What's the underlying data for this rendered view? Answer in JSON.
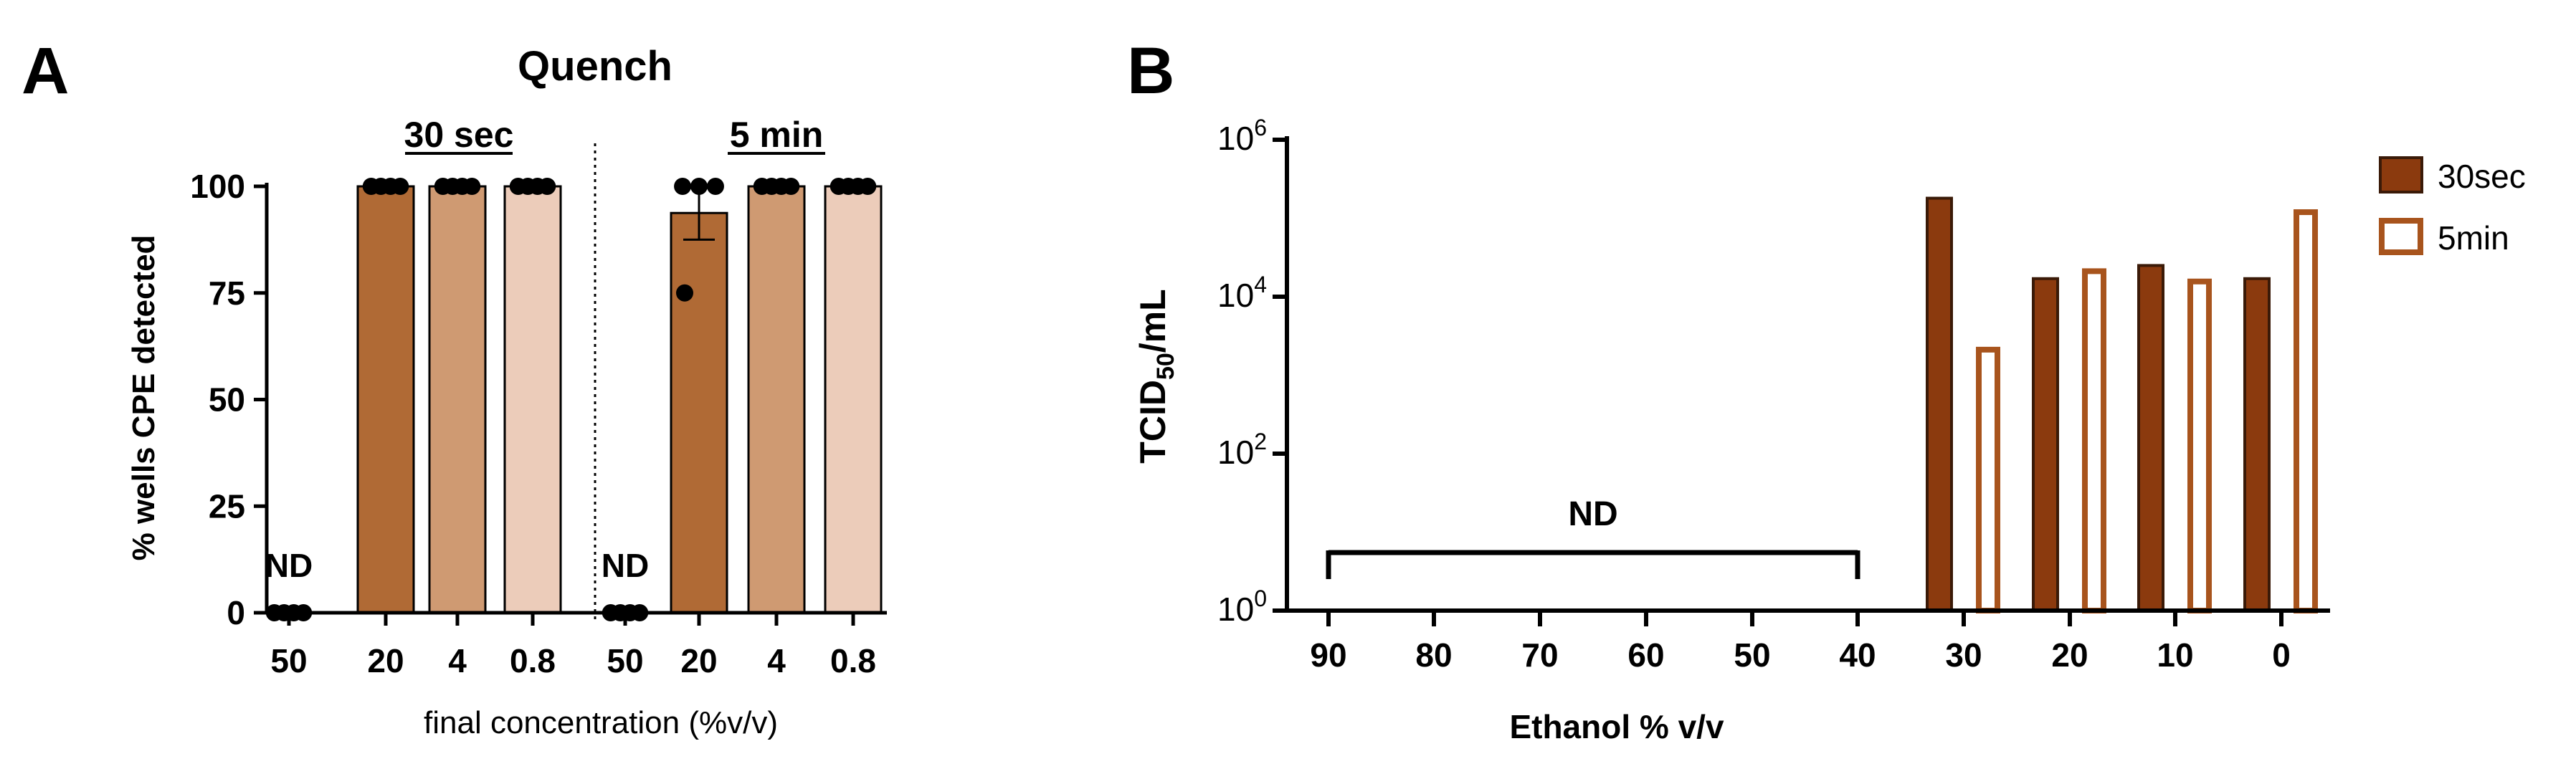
{
  "panel_a": {
    "letter": "A",
    "title": "Quench",
    "group_labels": [
      "30 sec",
      "5 min"
    ],
    "ylabel": "% wells CPE detected",
    "xlabel": "final concentration (%v/v)",
    "nd_label": "ND"
  },
  "panel_b": {
    "letter": "B",
    "ylabel_main": "TCID",
    "ylabel_sub": "50",
    "ylabel_tail": "/mL",
    "xlabel": "Ethanol % v/v",
    "nd_label": "ND",
    "legend": [
      "30sec",
      "5min"
    ]
  },
  "chart_data": [
    {
      "type": "bar",
      "title": "Quench",
      "xlabel": "final concentration (%v/v)",
      "ylabel": "% wells CPE detected",
      "ylim": [
        0,
        100
      ],
      "yticks": [
        0,
        25,
        50,
        75,
        100
      ],
      "groups": [
        "30 sec",
        "5 min"
      ],
      "categories": [
        "50",
        "20",
        "4",
        "0.8",
        "50",
        "20",
        "4",
        "0.8"
      ],
      "values": [
        0,
        100,
        100,
        100,
        0,
        93.75,
        100,
        100
      ],
      "error_sem": [
        0,
        0,
        0,
        0,
        0,
        6.25,
        0,
        0
      ],
      "points": [
        [
          0,
          0,
          0,
          0
        ],
        [
          100,
          100,
          100,
          100
        ],
        [
          100,
          100,
          100,
          100
        ],
        [
          100,
          100,
          100,
          100
        ],
        [
          0,
          0,
          0,
          0
        ],
        [
          75,
          100,
          100,
          100
        ],
        [
          100,
          100,
          100,
          100
        ],
        [
          100,
          100,
          100,
          100
        ]
      ],
      "nd": [
        true,
        false,
        false,
        false,
        true,
        false,
        false,
        false
      ],
      "colors": [
        "#b06a35",
        "#b06a35",
        "#cf9a72",
        "#ecccba",
        "#b06a35",
        "#b06a35",
        "#cf9a72",
        "#ecccba"
      ],
      "grid": false
    },
    {
      "type": "bar",
      "xlabel": "Ethanol % v/v",
      "ylabel": "TCID50/mL",
      "yscale": "log",
      "ylim": [
        1,
        1000000
      ],
      "yticks": [
        1,
        100,
        10000,
        1000000
      ],
      "categories": [
        "90",
        "80",
        "70",
        "60",
        "50",
        "40",
        "30",
        "20",
        "10",
        "0"
      ],
      "series": [
        {
          "name": "30sec",
          "values": [
            null,
            null,
            null,
            null,
            null,
            null,
            180000,
            17000,
            25000,
            17000
          ],
          "color": "#8b3a0e",
          "style": "filled"
        },
        {
          "name": "5min",
          "values": [
            null,
            null,
            null,
            null,
            null,
            null,
            2300,
            23000,
            17000,
            130000
          ],
          "color": "#a8541d",
          "style": "outline"
        }
      ],
      "nd_range": [
        "90",
        "40"
      ],
      "nd_label": "ND",
      "legend_position": "top-right",
      "grid": false
    }
  ]
}
